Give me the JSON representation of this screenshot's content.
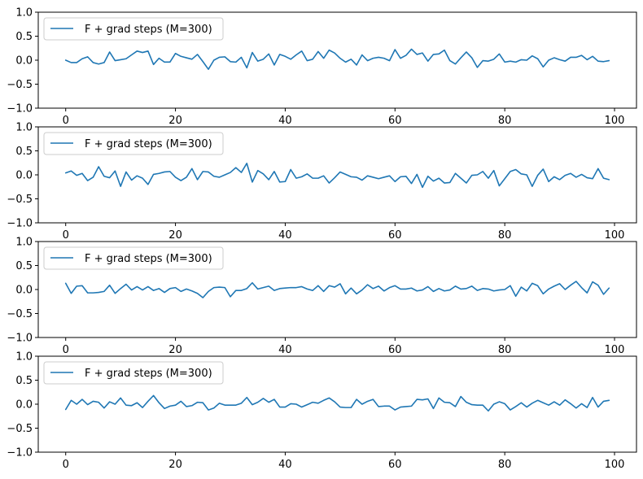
{
  "chart_data": [
    {
      "type": "line",
      "xlim": [
        -5,
        104
      ],
      "ylim": [
        -1.0,
        1.0
      ],
      "xticks": [
        0,
        20,
        40,
        60,
        80,
        100
      ],
      "yticks": [
        -1.0,
        -0.5,
        0.0,
        0.5,
        1.0
      ],
      "xtick_labels": [
        "0",
        "20",
        "40",
        "60",
        "80",
        "100"
      ],
      "ytick_labels": [
        "−1.0",
        "−0.5",
        "0.0",
        "0.5",
        "1.0"
      ],
      "legend_position": "upper-left",
      "series": [
        {
          "name": "F + grad steps (M=300)",
          "color": "#1f77b4",
          "x": [
            0,
            1,
            2,
            3,
            4,
            5,
            6,
            7,
            8,
            9,
            10,
            11,
            12,
            13,
            14,
            15,
            16,
            17,
            18,
            19,
            20,
            21,
            22,
            23,
            24,
            25,
            26,
            27,
            28,
            29,
            30,
            31,
            32,
            33,
            34,
            35,
            36,
            37,
            38,
            39,
            40,
            41,
            42,
            43,
            44,
            45,
            46,
            47,
            48,
            49,
            50,
            51,
            52,
            53,
            54,
            55,
            56,
            57,
            58,
            59,
            60,
            61,
            62,
            63,
            64,
            65,
            66,
            67,
            68,
            69,
            70,
            71,
            72,
            73,
            74,
            75,
            76,
            77,
            78,
            79,
            80,
            81,
            82,
            83,
            84,
            85,
            86,
            87,
            88,
            89,
            90,
            91,
            92,
            93,
            94,
            95,
            96,
            97,
            98,
            99
          ],
          "y": [
            0.0,
            -0.05,
            -0.05,
            0.03,
            0.07,
            -0.05,
            -0.08,
            -0.05,
            0.17,
            -0.01,
            0.01,
            0.03,
            0.11,
            0.19,
            0.16,
            0.19,
            -0.09,
            0.04,
            -0.04,
            -0.04,
            0.14,
            0.08,
            0.05,
            0.02,
            0.12,
            -0.03,
            -0.19,
            0.0,
            0.06,
            0.07,
            -0.03,
            -0.04,
            0.06,
            -0.16,
            0.16,
            -0.02,
            0.02,
            0.13,
            -0.1,
            0.12,
            0.08,
            0.02,
            0.11,
            0.19,
            -0.01,
            0.02,
            0.18,
            0.04,
            0.21,
            0.15,
            0.04,
            -0.04,
            0.02,
            -0.1,
            0.11,
            -0.01,
            0.04,
            0.06,
            0.04,
            -0.01,
            0.22,
            0.04,
            0.1,
            0.23,
            0.12,
            0.15,
            -0.02,
            0.12,
            0.13,
            0.21,
            -0.01,
            -0.08,
            0.05,
            0.17,
            0.05,
            -0.15,
            -0.01,
            -0.02,
            0.02,
            0.13,
            -0.04,
            -0.02,
            -0.04,
            0.01,
            0.0,
            0.09,
            0.03,
            -0.14,
            0.0,
            0.05,
            0.01,
            -0.02,
            0.06,
            0.06,
            0.1,
            0.01,
            0.08,
            -0.02,
            -0.03,
            -0.01
          ]
        }
      ]
    },
    {
      "type": "line",
      "xlim": [
        -5,
        104
      ],
      "ylim": [
        -1.0,
        1.0
      ],
      "xticks": [
        0,
        20,
        40,
        60,
        80,
        100
      ],
      "yticks": [
        -1.0,
        -0.5,
        0.0,
        0.5,
        1.0
      ],
      "xtick_labels": [
        "0",
        "20",
        "40",
        "60",
        "80",
        "100"
      ],
      "ytick_labels": [
        "−1.0",
        "−0.5",
        "0.0",
        "0.5",
        "1.0"
      ],
      "legend_position": "upper-left",
      "series": [
        {
          "name": "F + grad steps (M=300)",
          "color": "#1f77b4",
          "x": [
            0,
            1,
            2,
            3,
            4,
            5,
            6,
            7,
            8,
            9,
            10,
            11,
            12,
            13,
            14,
            15,
            16,
            17,
            18,
            19,
            20,
            21,
            22,
            23,
            24,
            25,
            26,
            27,
            28,
            29,
            30,
            31,
            32,
            33,
            34,
            35,
            36,
            37,
            38,
            39,
            40,
            41,
            42,
            43,
            44,
            45,
            46,
            47,
            48,
            49,
            50,
            51,
            52,
            53,
            54,
            55,
            56,
            57,
            58,
            59,
            60,
            61,
            62,
            63,
            64,
            65,
            66,
            67,
            68,
            69,
            70,
            71,
            72,
            73,
            74,
            75,
            76,
            77,
            78,
            79,
            80,
            81,
            82,
            83,
            84,
            85,
            86,
            87,
            88,
            89,
            90,
            91,
            92,
            93,
            94,
            95,
            96,
            97,
            98,
            99
          ],
          "y": [
            0.04,
            0.08,
            -0.01,
            0.03,
            -0.12,
            -0.05,
            0.17,
            -0.03,
            -0.06,
            0.08,
            -0.24,
            0.06,
            -0.11,
            -0.02,
            -0.07,
            -0.2,
            0.01,
            0.03,
            0.06,
            0.07,
            -0.05,
            -0.12,
            -0.05,
            0.13,
            -0.1,
            0.07,
            0.06,
            -0.03,
            -0.05,
            0.0,
            0.05,
            0.15,
            0.05,
            0.24,
            -0.15,
            0.09,
            0.02,
            -0.1,
            0.07,
            -0.15,
            -0.14,
            0.11,
            -0.07,
            -0.04,
            0.02,
            -0.07,
            -0.07,
            -0.02,
            -0.17,
            -0.06,
            0.06,
            0.01,
            -0.04,
            -0.05,
            -0.11,
            -0.02,
            -0.05,
            -0.08,
            -0.05,
            -0.02,
            -0.14,
            -0.04,
            -0.03,
            -0.18,
            0.01,
            -0.26,
            -0.03,
            -0.13,
            -0.07,
            -0.17,
            -0.16,
            0.03,
            -0.07,
            -0.17,
            -0.01,
            0.0,
            0.07,
            -0.07,
            0.09,
            -0.23,
            -0.08,
            0.07,
            0.11,
            0.02,
            0.0,
            -0.24,
            -0.01,
            0.12,
            -0.14,
            -0.04,
            -0.1,
            -0.01,
            0.03,
            -0.05,
            0.01,
            -0.06,
            -0.08,
            0.13,
            -0.07,
            -0.1
          ]
        }
      ]
    },
    {
      "type": "line",
      "xlim": [
        -5,
        104
      ],
      "ylim": [
        -1.0,
        1.0
      ],
      "xticks": [
        0,
        20,
        40,
        60,
        80,
        100
      ],
      "yticks": [
        -1.0,
        -0.5,
        0.0,
        0.5,
        1.0
      ],
      "xtick_labels": [
        "0",
        "20",
        "40",
        "60",
        "80",
        "100"
      ],
      "ytick_labels": [
        "−1.0",
        "−0.5",
        "0.0",
        "0.5",
        "1.0"
      ],
      "legend_position": "upper-left",
      "series": [
        {
          "name": "F + grad steps (M=300)",
          "color": "#1f77b4",
          "x": [
            0,
            1,
            2,
            3,
            4,
            5,
            6,
            7,
            8,
            9,
            10,
            11,
            12,
            13,
            14,
            15,
            16,
            17,
            18,
            19,
            20,
            21,
            22,
            23,
            24,
            25,
            26,
            27,
            28,
            29,
            30,
            31,
            32,
            33,
            34,
            35,
            36,
            37,
            38,
            39,
            40,
            41,
            42,
            43,
            44,
            45,
            46,
            47,
            48,
            49,
            50,
            51,
            52,
            53,
            54,
            55,
            56,
            57,
            58,
            59,
            60,
            61,
            62,
            63,
            64,
            65,
            66,
            67,
            68,
            69,
            70,
            71,
            72,
            73,
            74,
            75,
            76,
            77,
            78,
            79,
            80,
            81,
            82,
            83,
            84,
            85,
            86,
            87,
            88,
            89,
            90,
            91,
            92,
            93,
            94,
            95,
            96,
            97,
            98,
            99
          ],
          "y": [
            0.13,
            -0.08,
            0.07,
            0.08,
            -0.07,
            -0.07,
            -0.06,
            -0.04,
            0.09,
            -0.08,
            0.02,
            0.11,
            -0.01,
            0.06,
            -0.01,
            0.06,
            -0.02,
            0.02,
            -0.06,
            0.02,
            0.04,
            -0.04,
            0.01,
            -0.03,
            -0.08,
            -0.17,
            -0.04,
            0.04,
            0.05,
            0.04,
            -0.15,
            -0.02,
            -0.02,
            0.02,
            0.14,
            0.01,
            0.04,
            0.07,
            -0.02,
            0.02,
            0.03,
            0.04,
            0.04,
            0.06,
            0.01,
            -0.02,
            0.08,
            -0.04,
            0.08,
            0.05,
            0.12,
            -0.09,
            0.03,
            -0.09,
            -0.01,
            0.1,
            0.02,
            0.07,
            -0.03,
            0.04,
            0.08,
            0.01,
            0.01,
            0.03,
            -0.03,
            -0.01,
            0.06,
            -0.04,
            0.02,
            -0.03,
            -0.01,
            0.07,
            0.01,
            0.02,
            0.07,
            -0.02,
            0.02,
            0.01,
            -0.03,
            -0.01,
            0.0,
            0.08,
            -0.14,
            0.05,
            -0.03,
            0.13,
            0.08,
            -0.09,
            0.01,
            0.07,
            0.12,
            0.0,
            0.09,
            0.17,
            0.04,
            -0.07,
            0.16,
            0.09,
            -0.1,
            0.03
          ]
        }
      ]
    },
    {
      "type": "line",
      "xlim": [
        -5,
        104
      ],
      "ylim": [
        -1.0,
        1.0
      ],
      "xticks": [
        0,
        20,
        40,
        60,
        80,
        100
      ],
      "yticks": [
        -1.0,
        -0.5,
        0.0,
        0.5,
        1.0
      ],
      "xtick_labels": [
        "0",
        "20",
        "40",
        "60",
        "80",
        "100"
      ],
      "ytick_labels": [
        "−1.0",
        "−0.5",
        "0.0",
        "0.5",
        "1.0"
      ],
      "legend_position": "upper-left",
      "series": [
        {
          "name": "F + grad steps (M=300)",
          "color": "#1f77b4",
          "x": [
            0,
            1,
            2,
            3,
            4,
            5,
            6,
            7,
            8,
            9,
            10,
            11,
            12,
            13,
            14,
            15,
            16,
            17,
            18,
            19,
            20,
            21,
            22,
            23,
            24,
            25,
            26,
            27,
            28,
            29,
            30,
            31,
            32,
            33,
            34,
            35,
            36,
            37,
            38,
            39,
            40,
            41,
            42,
            43,
            44,
            45,
            46,
            47,
            48,
            49,
            50,
            51,
            52,
            53,
            54,
            55,
            56,
            57,
            58,
            59,
            60,
            61,
            62,
            63,
            64,
            65,
            66,
            67,
            68,
            69,
            70,
            71,
            72,
            73,
            74,
            75,
            76,
            77,
            78,
            79,
            80,
            81,
            82,
            83,
            84,
            85,
            86,
            87,
            88,
            89,
            90,
            91,
            92,
            93,
            94,
            95,
            96,
            97,
            98,
            99
          ],
          "y": [
            -0.11,
            0.08,
            0.0,
            0.1,
            -0.01,
            0.06,
            0.04,
            -0.08,
            0.05,
            0.0,
            0.13,
            -0.02,
            -0.03,
            0.03,
            -0.07,
            0.06,
            0.18,
            0.03,
            -0.09,
            -0.04,
            -0.02,
            0.06,
            -0.05,
            -0.03,
            0.04,
            0.03,
            -0.12,
            -0.08,
            0.02,
            -0.02,
            -0.02,
            -0.02,
            0.02,
            0.14,
            -0.01,
            0.04,
            0.12,
            0.04,
            0.1,
            -0.06,
            -0.06,
            0.01,
            0.0,
            -0.06,
            -0.01,
            0.04,
            0.02,
            0.08,
            0.13,
            0.05,
            -0.06,
            -0.07,
            -0.07,
            0.1,
            0.0,
            0.06,
            0.1,
            -0.05,
            -0.04,
            -0.04,
            -0.12,
            -0.06,
            -0.05,
            -0.04,
            0.1,
            0.09,
            0.11,
            -0.09,
            0.13,
            0.04,
            0.03,
            -0.05,
            0.16,
            0.04,
            -0.01,
            -0.02,
            -0.02,
            -0.14,
            0.0,
            0.05,
            0.01,
            -0.12,
            -0.05,
            0.03,
            -0.06,
            0.02,
            0.08,
            0.03,
            -0.02,
            0.05,
            -0.02,
            0.09,
            0.01,
            -0.08,
            0.01,
            -0.07,
            0.14,
            -0.06,
            0.06,
            0.08
          ]
        }
      ]
    }
  ]
}
